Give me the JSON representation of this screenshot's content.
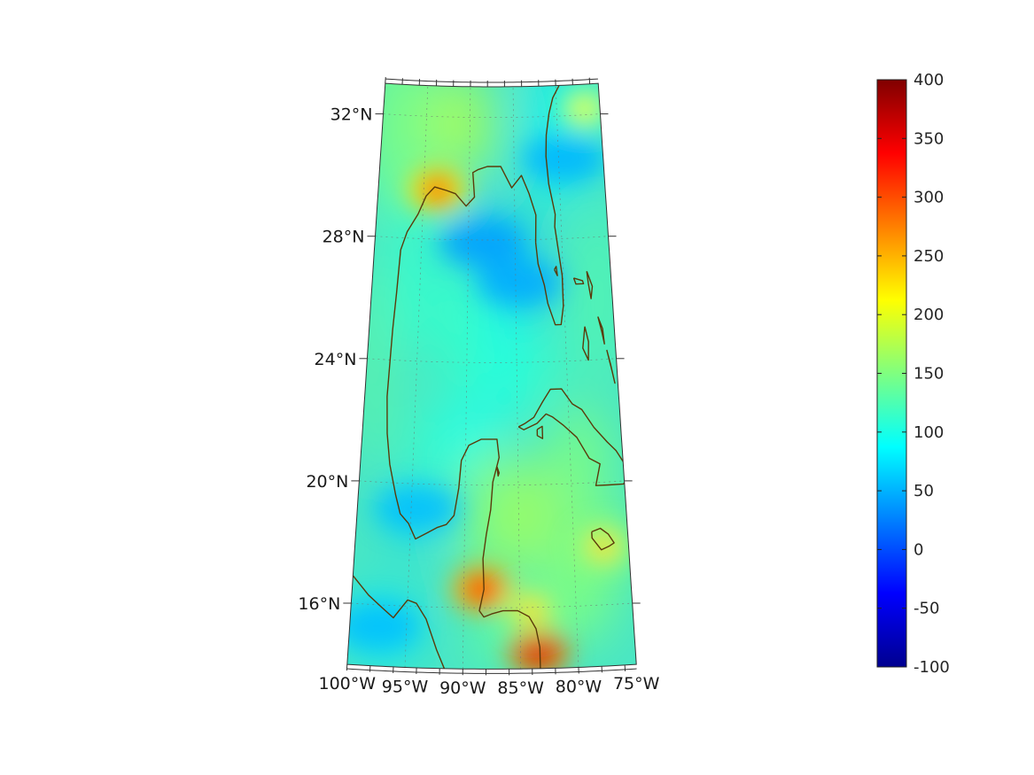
{
  "map": {
    "projection": "conic",
    "lon_range": [
      -100,
      -75
    ],
    "lat_range": [
      14,
      33
    ],
    "colormap": "jet",
    "lon_ticks": [
      {
        "lon": -100,
        "label": "100°W"
      },
      {
        "lon": -95,
        "label": "95°W"
      },
      {
        "lon": -90,
        "label": "90°W"
      },
      {
        "lon": -85,
        "label": "85°W"
      },
      {
        "lon": -80,
        "label": "80°W"
      },
      {
        "lon": -75,
        "label": "75°W"
      }
    ],
    "lat_ticks": [
      {
        "lat": 32,
        "label": "32°N"
      },
      {
        "lat": 28,
        "label": "28°N"
      },
      {
        "lat": 24,
        "label": "24°N"
      },
      {
        "lat": 20,
        "label": "20°N"
      },
      {
        "lat": 16,
        "label": "16°N"
      }
    ],
    "hotspots": [
      {
        "lon": -93.5,
        "lat": 29.6,
        "value": 300
      },
      {
        "lon": -88.4,
        "lat": 16.6,
        "value": 330
      },
      {
        "lon": -83.4,
        "lat": 14.5,
        "value": 360
      },
      {
        "lon": -84.0,
        "lat": 15.9,
        "value": 230
      },
      {
        "lon": -77.3,
        "lat": 17.9,
        "value": 230
      },
      {
        "lon": -76.8,
        "lat": 32.2,
        "value": 205
      }
    ],
    "lowspots": [
      {
        "lon": -88.5,
        "lat": 27.9,
        "value": 40
      },
      {
        "lon": -84.6,
        "lat": 26.6,
        "value": 45
      },
      {
        "lon": -79.4,
        "lat": 30.6,
        "value": 50
      },
      {
        "lon": -94.4,
        "lat": 19.2,
        "value": 55
      },
      {
        "lon": -97.6,
        "lat": 15.3,
        "value": 55
      }
    ]
  },
  "colorbar": {
    "min": -100,
    "max": 400,
    "ticks": [
      {
        "value": 400,
        "label": "400"
      },
      {
        "value": 350,
        "label": "350"
      },
      {
        "value": 300,
        "label": "300"
      },
      {
        "value": 250,
        "label": "250"
      },
      {
        "value": 200,
        "label": "200"
      },
      {
        "value": 150,
        "label": "150"
      },
      {
        "value": 100,
        "label": "100"
      },
      {
        "value": 50,
        "label": "50"
      },
      {
        "value": 0,
        "label": "0"
      },
      {
        "value": -50,
        "label": "-50"
      },
      {
        "value": -100,
        "label": "-100"
      }
    ],
    "colors": {
      "darkblue": "#00008f",
      "blue": "#0000ff",
      "cyan": "#00ffff",
      "yellow": "#ffff00",
      "red": "#ff0000",
      "darkred": "#800000"
    }
  },
  "coastline_color": "#5a3a0a"
}
